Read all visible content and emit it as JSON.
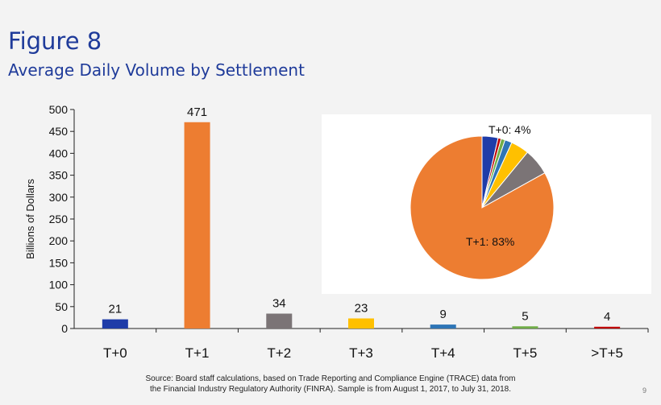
{
  "slide": {
    "title": "Figure 8",
    "subtitle": "Average Daily Volume by Settlement",
    "source_line1": "Source: Board staff calculations, based on Trade Reporting and Compliance Engine (TRACE) data from",
    "source_line2": "the Financial Industry Regulatory Authority (FINRA). Sample is from August 1, 2017, to July 31, 2018.",
    "page_number": "9"
  },
  "chart_data": [
    {
      "type": "bar",
      "title": "",
      "xlabel": "",
      "ylabel": "Billions of Dollars",
      "categories": [
        "T+0",
        "T+1",
        "T+2",
        "T+3",
        "T+4",
        "T+5",
        ">T+5"
      ],
      "values": [
        21,
        471,
        34,
        23,
        9,
        5,
        4
      ],
      "colors": [
        "#1f3ca8",
        "#ed7d31",
        "#7b7476",
        "#ffc000",
        "#2e75b6",
        "#70ad47",
        "#c00000"
      ],
      "ylim": [
        0,
        500
      ],
      "yticks": [
        0,
        50,
        100,
        150,
        200,
        250,
        300,
        350,
        400,
        450,
        500
      ],
      "grid": false,
      "data_labels": true
    },
    {
      "type": "pie",
      "categories": [
        "T+0",
        "T+1",
        "T+2",
        "T+3",
        "T+4",
        "T+5",
        ">T+5"
      ],
      "values": [
        3.6,
        82.9,
        6.0,
        4.1,
        1.6,
        0.9,
        0.7
      ],
      "colors": [
        "#1f3ca8",
        "#ed7d31",
        "#7b7476",
        "#ffc000",
        "#2e75b6",
        "#70ad47",
        "#c00000"
      ],
      "labels": [
        {
          "category": "T+0",
          "text": "T+0: 4%"
        },
        {
          "category": "T+1",
          "text": "T+1: 83%"
        }
      ]
    }
  ]
}
